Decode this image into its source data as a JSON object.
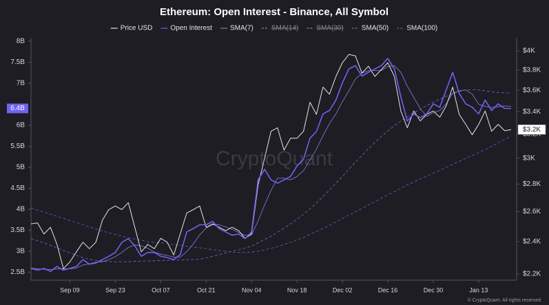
{
  "chart_data": {
    "type": "line",
    "title": "Ethereum: Open Interest - Binance, All Symbol",
    "watermark": "CryptoQuant",
    "credit": "© CryptoQuant. All rights reserved",
    "categories": [
      null,
      null,
      null,
      null,
      null,
      null,
      "Sep 09",
      null,
      null,
      null,
      null,
      null,
      null,
      "Sep 23",
      null,
      null,
      null,
      null,
      null,
      null,
      "Oct 07",
      null,
      null,
      null,
      null,
      null,
      null,
      "Oct 21",
      null,
      null,
      null,
      null,
      null,
      null,
      "Nov 04",
      null,
      null,
      null,
      null,
      null,
      null,
      "Nov 18",
      null,
      null,
      null,
      null,
      null,
      null,
      "Dec 02",
      null,
      null,
      null,
      null,
      null,
      null,
      "Dec 16",
      null,
      null,
      null,
      null,
      null,
      null,
      "Dec 30",
      null,
      null,
      null,
      null,
      null,
      null,
      "Jan 13",
      null,
      null,
      null,
      null,
      null
    ],
    "ylim": [
      2.31,
      8.08
    ],
    "yticks": [
      {
        "value": 2.5,
        "label": "2.5B"
      },
      {
        "value": 3,
        "label": "3B"
      },
      {
        "value": 3.5,
        "label": "3.5B"
      },
      {
        "value": 4,
        "label": "4B"
      },
      {
        "value": 4.5,
        "label": "4.5B"
      },
      {
        "value": 5,
        "label": "5B"
      },
      {
        "value": 5.5,
        "label": "5.5B"
      },
      {
        "value": 6,
        "label": "6B"
      },
      {
        "value": 7,
        "label": "7B"
      },
      {
        "value": 7.5,
        "label": "7.5B"
      },
      {
        "value": 8,
        "label": "8B"
      }
    ],
    "y2lim": [
      2164,
      4143
    ],
    "y2log": true,
    "y2ticks": [
      {
        "value": 2200,
        "label": "$2.2K"
      },
      {
        "value": 2400,
        "label": "$2.4K"
      },
      {
        "value": 2600,
        "label": "$2.6K"
      },
      {
        "value": 2800,
        "label": "$2.8K"
      },
      {
        "value": 3000,
        "label": "$3K"
      },
      {
        "value": 3200,
        "label": "$3.2K"
      },
      {
        "value": 3400,
        "label": "$3.4K"
      },
      {
        "value": 3600,
        "label": "$3.6K"
      },
      {
        "value": 3800,
        "label": "$3.8K"
      },
      {
        "value": 4000,
        "label": "$4K"
      }
    ],
    "grid": false,
    "series": [
      {
        "name": "Price USD",
        "color": "#e6e6ea",
        "axis": "y2",
        "width": 1,
        "last_label": "$3.2K",
        "values": [
          2517,
          2523,
          2449,
          2494,
          2382,
          2232,
          2273,
          2335,
          2396,
          2355,
          2396,
          2541,
          2615,
          2640,
          2615,
          2664,
          2494,
          2335,
          2382,
          2355,
          2421,
          2396,
          2315,
          2449,
          2591,
          2615,
          2640,
          2494,
          2517,
          2494,
          2472,
          2494,
          2472,
          2421,
          2449,
          2794,
          3001,
          3226,
          3256,
          3067,
          3166,
          3166,
          3226,
          3486,
          3375,
          3631,
          3562,
          3736,
          3876,
          3963,
          3948,
          3770,
          3840,
          3736,
          3805,
          3876,
          3736,
          3406,
          3256,
          3406,
          3317,
          3375,
          3406,
          3350,
          3454,
          3631,
          3375,
          3286,
          3196,
          3286,
          3406,
          3226,
          3286,
          3230,
          3240
        ]
      },
      {
        "name": "Open Interest",
        "color": "#6f63f2",
        "width": 1.6,
        "last_label": "6.4B",
        "values": [
          2.59,
          2.55,
          2.59,
          2.52,
          2.64,
          2.55,
          2.59,
          2.64,
          2.8,
          2.69,
          2.72,
          2.8,
          2.88,
          2.97,
          3.21,
          3.3,
          3.13,
          2.88,
          2.97,
          2.97,
          2.88,
          2.85,
          2.8,
          2.92,
          3.46,
          3.54,
          3.63,
          3.63,
          3.71,
          3.54,
          3.46,
          3.38,
          3.41,
          3.3,
          3.46,
          4.7,
          4.95,
          4.7,
          4.62,
          4.7,
          4.78,
          5.03,
          5.19,
          5.69,
          5.85,
          6.27,
          6.35,
          6.6,
          7.01,
          7.34,
          7.42,
          7.17,
          7.26,
          7.34,
          7.42,
          7.59,
          7.34,
          6.68,
          6.1,
          6.27,
          6.18,
          6.27,
          6.51,
          6.43,
          6.84,
          7.26,
          6.76,
          6.51,
          6.43,
          6.27,
          6.6,
          6.35,
          6.51,
          6.4,
          6.4
        ]
      },
      {
        "name": "SMA(7)",
        "color": "#7d76d6",
        "width": 0.9,
        "values": [
          2.6,
          2.58,
          2.57,
          2.56,
          2.58,
          2.58,
          2.58,
          2.6,
          2.67,
          2.7,
          2.74,
          2.75,
          2.8,
          2.87,
          2.97,
          3.09,
          3.15,
          3.13,
          3.07,
          2.98,
          2.93,
          2.9,
          2.86,
          2.86,
          2.99,
          3.17,
          3.39,
          3.55,
          3.63,
          3.63,
          3.58,
          3.52,
          3.45,
          3.38,
          3.39,
          3.72,
          4.1,
          4.45,
          4.74,
          4.74,
          4.7,
          4.78,
          4.92,
          5.17,
          5.43,
          5.75,
          6.04,
          6.27,
          6.56,
          6.82,
          7.1,
          7.24,
          7.3,
          7.3,
          7.3,
          7.4,
          7.42,
          7.26,
          6.93,
          6.66,
          6.4,
          6.21,
          6.3,
          6.35,
          6.51,
          6.76,
          6.82,
          6.84,
          6.74,
          6.5,
          6.45,
          6.42,
          6.44,
          6.46,
          6.45
        ]
      },
      {
        "name": "SMA(14)",
        "color": "#7d76d6",
        "dash": true,
        "visible": false
      },
      {
        "name": "SMA(30)",
        "color": "#7d76d6",
        "dash": true,
        "visible": false
      },
      {
        "name": "SMA(50)",
        "color": "#6a62cc",
        "dash": true,
        "width": 0.9,
        "values": [
          3.3,
          3.25,
          3.2,
          3.14,
          3.08,
          3.02,
          2.96,
          2.9,
          2.85,
          2.81,
          2.78,
          2.76,
          2.75,
          2.75,
          2.75,
          2.75,
          2.76,
          2.76,
          2.77,
          2.77,
          2.78,
          2.78,
          2.79,
          2.79,
          2.8,
          2.8,
          2.81,
          2.84,
          2.88,
          2.92,
          2.96,
          3.0,
          3.04,
          3.08,
          3.12,
          3.2,
          3.28,
          3.36,
          3.45,
          3.55,
          3.65,
          3.76,
          3.88,
          4.01,
          4.15,
          4.3,
          4.46,
          4.62,
          4.78,
          4.95,
          5.12,
          5.28,
          5.44,
          5.59,
          5.73,
          5.86,
          5.99,
          6.1,
          6.2,
          6.29,
          6.38,
          6.47,
          6.55,
          6.62,
          6.69,
          6.75,
          6.8,
          6.84,
          6.85,
          6.84,
          6.82,
          6.8,
          6.78,
          6.77,
          6.76
        ]
      },
      {
        "name": "SMA(100)",
        "color": "#5d56c0",
        "dash": true,
        "width": 0.9,
        "values": [
          4.03,
          3.98,
          3.93,
          3.88,
          3.83,
          3.78,
          3.73,
          3.68,
          3.63,
          3.58,
          3.53,
          3.48,
          3.44,
          3.4,
          3.36,
          3.32,
          3.29,
          3.26,
          3.23,
          3.21,
          3.2,
          3.18,
          3.16,
          3.14,
          3.12,
          3.1,
          3.08,
          3.06,
          3.04,
          3.02,
          3.0,
          2.98,
          2.97,
          2.97,
          2.98,
          3.0,
          3.03,
          3.07,
          3.11,
          3.16,
          3.21,
          3.27,
          3.33,
          3.4,
          3.47,
          3.54,
          3.62,
          3.7,
          3.78,
          3.86,
          3.94,
          4.02,
          4.1,
          4.18,
          4.26,
          4.34,
          4.42,
          4.5,
          4.58,
          4.65,
          4.72,
          4.79,
          4.86,
          4.93,
          5.0,
          5.07,
          5.14,
          5.21,
          5.28,
          5.35,
          5.42,
          5.5,
          5.58,
          5.66,
          5.74
        ]
      }
    ]
  }
}
